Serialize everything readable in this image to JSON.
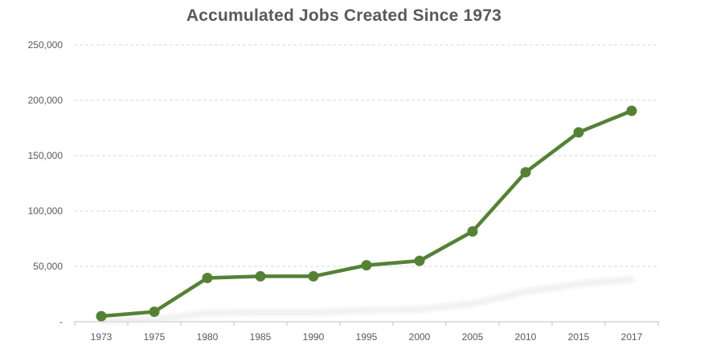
{
  "chart_data": {
    "type": "line",
    "title": "Accumulated Jobs Created Since 1973",
    "xlabel": "",
    "ylabel": "",
    "categories": [
      "1973",
      "1975",
      "1980",
      "1985",
      "1990",
      "1995",
      "2000",
      "2005",
      "2010",
      "2015",
      "2017"
    ],
    "series": [
      {
        "values": [
          5000,
          9000,
          39500,
          41000,
          41000,
          51000,
          55000,
          81500,
          135000,
          171000,
          190500
        ],
        "color": "#548235",
        "markers": true
      }
    ],
    "ylim": [
      0,
      250000
    ],
    "yticks": [
      0,
      50000,
      100000,
      150000,
      200000,
      250000
    ],
    "ytick_labels": [
      "-",
      "50,000",
      "100,000",
      "150,000",
      "200,000",
      "250,000"
    ],
    "grid": "horizontal-dashed",
    "legend": "none"
  }
}
